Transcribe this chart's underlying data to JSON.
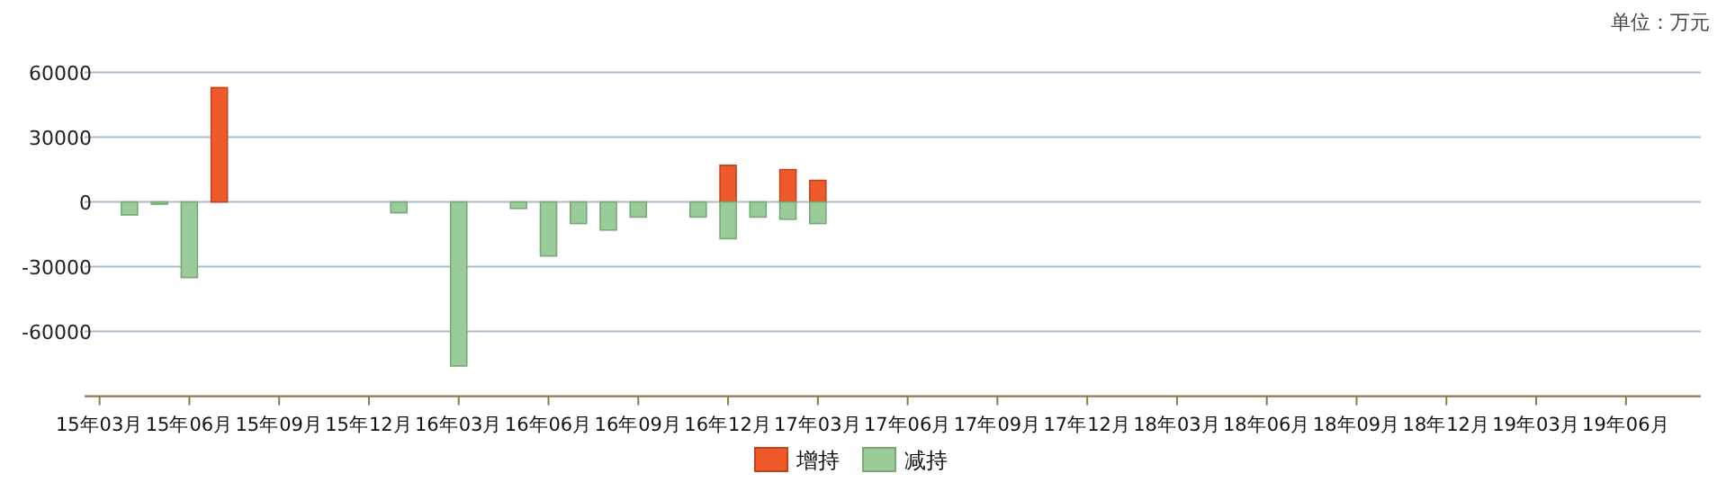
{
  "chart_data": {
    "type": "bar",
    "categories": [
      "15年03月",
      null,
      null,
      "15年06月",
      null,
      null,
      "15年09月",
      null,
      null,
      "15年12月",
      null,
      null,
      "16年03月",
      null,
      null,
      "16年06月",
      null,
      null,
      "16年09月",
      null,
      null,
      "16年12月",
      null,
      null,
      "17年03月",
      null,
      null,
      "17年06月",
      null,
      null,
      "17年09月",
      null,
      null,
      "17年12月",
      null,
      null,
      "18年03月",
      null,
      null,
      "18年06月",
      null,
      null,
      "18年09月",
      null,
      null,
      "18年12月",
      null,
      null,
      "19年03月",
      null,
      null,
      "19年06月",
      null,
      null
    ],
    "series": [
      {
        "name": "增持",
        "color": "#f05a2b",
        "values": [
          null,
          null,
          null,
          null,
          53000,
          null,
          null,
          null,
          null,
          null,
          null,
          null,
          null,
          null,
          null,
          null,
          null,
          null,
          null,
          null,
          null,
          17000,
          null,
          15000,
          10000,
          null,
          null,
          null,
          null,
          null,
          null,
          null,
          null,
          null,
          null,
          null,
          null,
          null,
          null,
          null,
          null,
          null,
          null,
          null,
          null,
          null,
          null,
          null,
          null,
          null,
          null,
          null,
          null,
          null
        ]
      },
      {
        "name": "减持",
        "color": "#99cc99",
        "values": [
          null,
          -6000,
          -1000,
          -35000,
          null,
          null,
          null,
          null,
          null,
          null,
          -5000,
          null,
          -76000,
          null,
          -3000,
          -25000,
          -10000,
          -13000,
          -7000,
          null,
          -7000,
          -17000,
          -7000,
          -8000,
          -10000,
          null,
          null,
          null,
          null,
          null,
          null,
          null,
          null,
          null,
          null,
          null,
          null,
          null,
          null,
          null,
          null,
          null,
          null,
          null,
          null,
          null,
          null,
          null,
          null,
          null,
          null,
          null,
          null,
          null
        ]
      }
    ],
    "ylim": [
      -90000,
      60000
    ],
    "yticks": [
      -60000,
      -30000,
      0,
      30000,
      60000
    ],
    "grid": "y",
    "legend": "bottom",
    "annotations": [
      "单位：万元"
    ]
  }
}
